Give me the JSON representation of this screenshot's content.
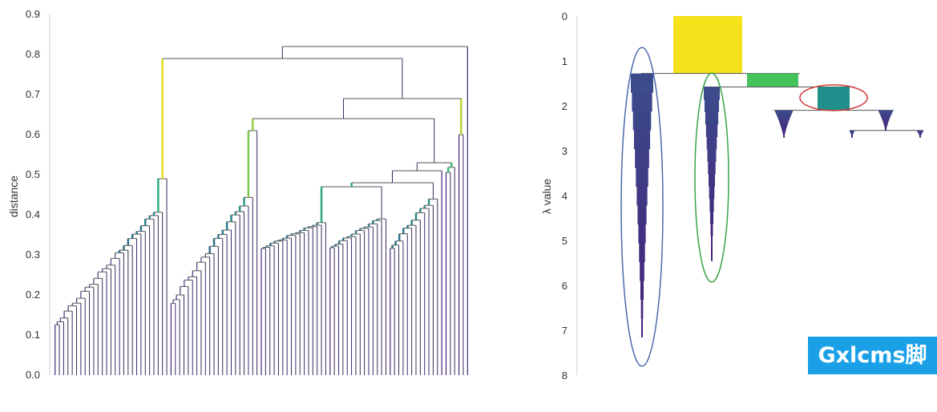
{
  "chart_data": [
    {
      "type": "dendrogram",
      "ylabel": "distance",
      "ylim": [
        0,
        0.9
      ],
      "yticks": [
        "0.0",
        "0.1",
        "0.2",
        "0.3",
        "0.4",
        "0.5",
        "0.6",
        "0.7",
        "0.8",
        "0.9"
      ],
      "leaf_count": 100,
      "merge_distances": {
        "root": 0.82,
        "second": 0.79,
        "right_cluster": 0.69,
        "right_subcluster": 0.64,
        "right_inner": 0.53,
        "right_inner_2": 0.48,
        "left_cluster_top": 0.49
      },
      "colormap_top": "#f5e21a",
      "colormap_mid": "#2fb47c",
      "colormap_low": "#44287a"
    },
    {
      "type": "condensed-tree",
      "ylabel": "λ value",
      "ylim": [
        0,
        8
      ],
      "yticks": [
        "0",
        "1",
        "2",
        "3",
        "4",
        "5",
        "6",
        "7",
        "8"
      ],
      "clusters": [
        {
          "lambda_birth": 0.0,
          "lambda_split": 1.28,
          "color": "#f5e21a"
        },
        {
          "lambda_birth": 1.28,
          "lambda_split": 1.58,
          "color": "#46c25a"
        },
        {
          "lambda_birth": 1.58,
          "lambda_split": 2.1,
          "color": "#1f908b"
        },
        {
          "lambda_birth": 1.28,
          "lambda_end": 7.15,
          "color": "#3b4b8c",
          "selected_ring": "#4a6aad"
        },
        {
          "lambda_birth": 1.58,
          "lambda_end": 5.45,
          "color": "#3b4b8c",
          "selected_ring": "#3aa34a"
        },
        {
          "lambda_birth": 2.1,
          "lambda_end": 2.7,
          "color": "#3b4b8c"
        },
        {
          "lambda_birth": 2.1,
          "lambda_end": 2.55,
          "color": "#3b4b8c"
        },
        {
          "lambda_birth": 2.55,
          "lambda_end": 2.7,
          "color": "#3b4b8c"
        }
      ],
      "highlight_ring_color": "#cc3a3a"
    }
  ],
  "watermark": "Gxlcms脚本"
}
